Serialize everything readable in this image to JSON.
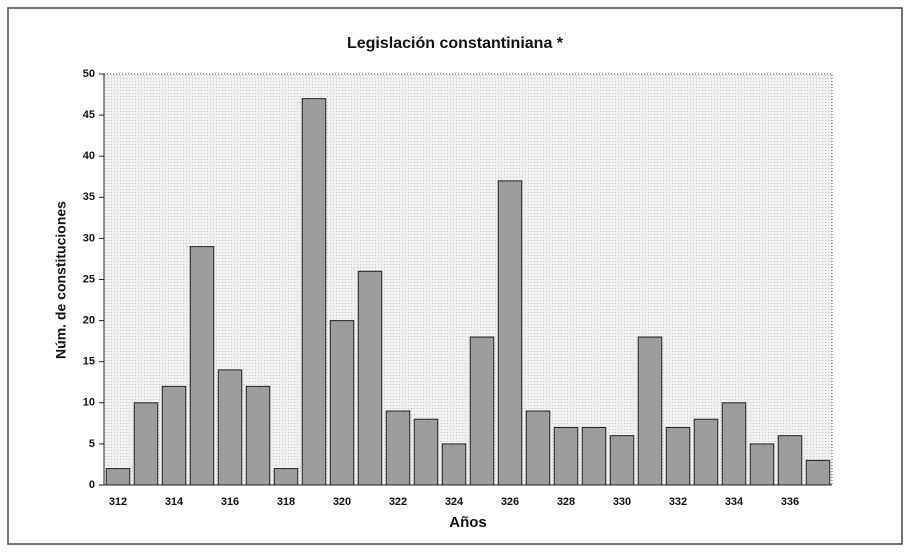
{
  "chart_data": {
    "type": "bar",
    "title": "Legislación constantiniana *",
    "x_label": "Años",
    "y_label": "Núm. de constituciones",
    "categories": [
      "312",
      null,
      "314",
      null,
      "316",
      null,
      "318",
      null,
      "320",
      null,
      "322",
      null,
      "324",
      null,
      "326",
      null,
      "328",
      null,
      "330",
      null,
      "332",
      null,
      "334",
      null,
      "336",
      null
    ],
    "values": [
      2,
      10,
      12,
      29,
      14,
      12,
      2,
      47,
      20,
      26,
      9,
      8,
      5,
      18,
      37,
      9,
      7,
      7,
      6,
      18,
      7,
      8,
      10,
      5,
      6,
      3
    ],
    "color": "#9c9c9c",
    "ylim": [
      0,
      50
    ],
    "yticks": [
      0,
      5,
      10,
      15,
      20,
      25,
      30,
      35,
      40,
      45,
      50
    ]
  }
}
